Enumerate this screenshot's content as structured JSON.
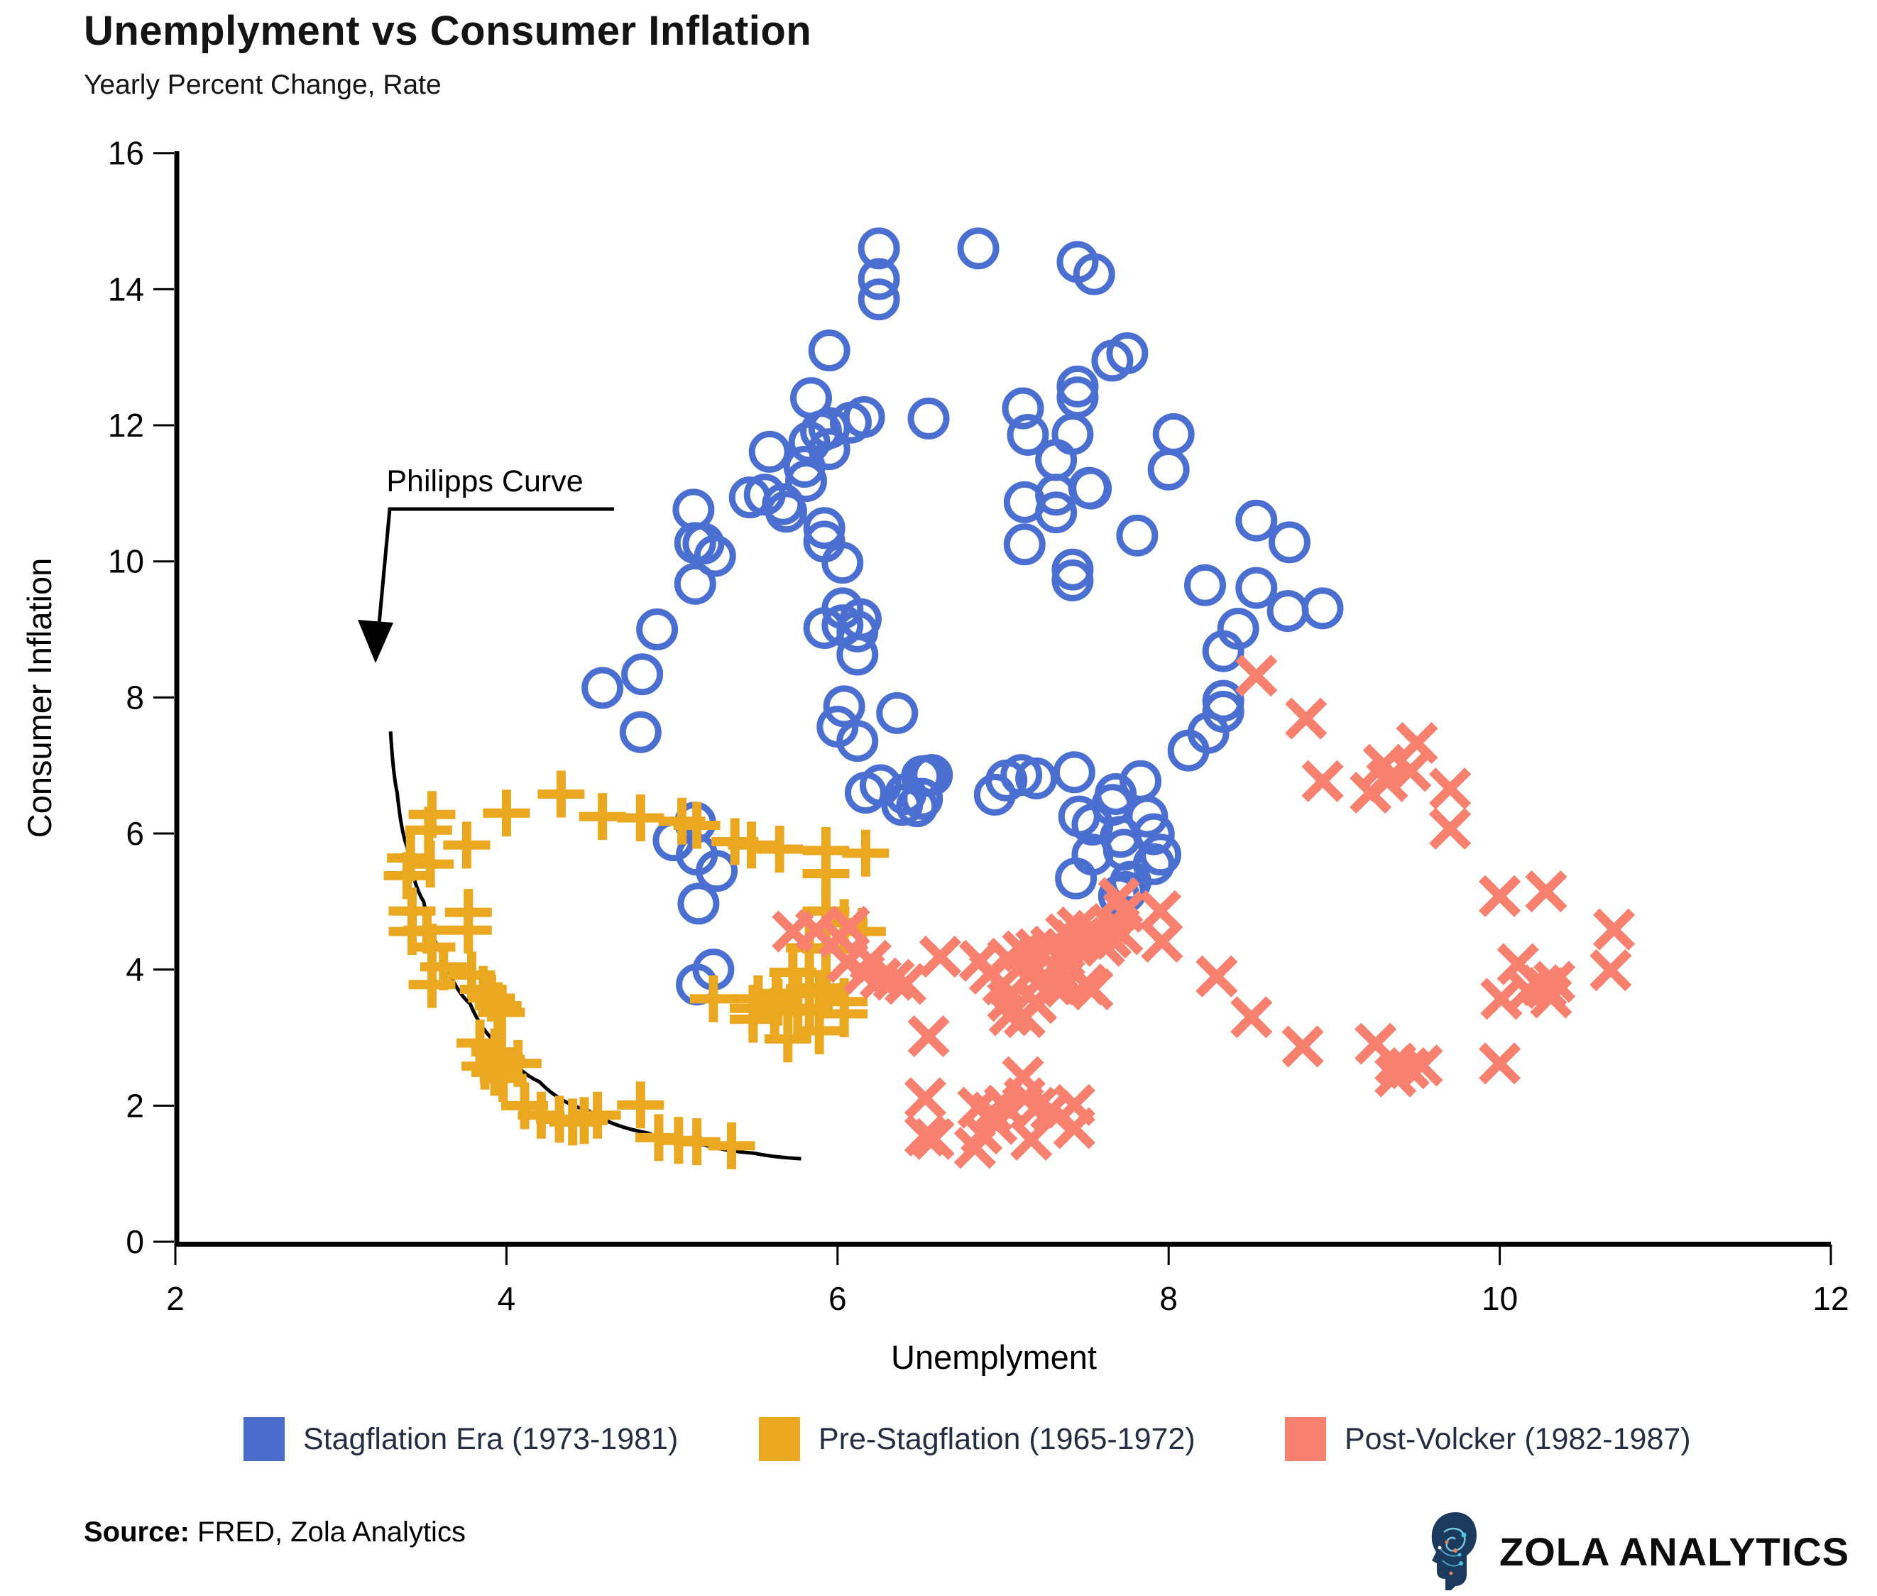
{
  "header": {
    "title": "Unemplyment vs Consumer Inflation",
    "subtitle": "Yearly Percent Change, Rate"
  },
  "axes": {
    "x_label": "Unemplyment",
    "y_label": "Consumer Inflation",
    "x_ticks": [
      2,
      4,
      6,
      8,
      10,
      12
    ],
    "y_ticks": [
      0,
      2,
      4,
      6,
      8,
      10,
      12,
      14,
      16
    ]
  },
  "annotation": {
    "label": "Philipps Curve"
  },
  "legend": [
    {
      "label": "Stagflation Era (1973-1981)",
      "color": "#4a6bc9"
    },
    {
      "label": "Pre-Stagflation (1965-1972)",
      "color": "#e9a820"
    },
    {
      "label": "Post-Volcker (1982-1987)",
      "color": "#f8806e"
    }
  ],
  "footer": {
    "source_label": "Source:",
    "source_text": " FRED, Zola Analytics",
    "brand": "ZOLA ANALYTICS"
  },
  "chart_data": {
    "type": "scatter",
    "title": "Unemplyment vs Consumer Inflation",
    "subtitle": "Yearly Percent Change, Rate",
    "xlabel": "Unemplyment",
    "ylabel": "Consumer Inflation",
    "xlim": [
      2,
      12
    ],
    "ylim": [
      0,
      16
    ],
    "grid": false,
    "legend_position": "bottom",
    "series": [
      {
        "name": "Stagflation Era (1973-1981)",
        "marker": "circle",
        "color": "#4a6fd1",
        "points": [
          [
            6.25,
            14.6
          ],
          [
            6.25,
            14.15
          ],
          [
            6.25,
            13.85
          ],
          [
            6.85,
            14.6
          ],
          [
            7.45,
            14.4
          ],
          [
            7.55,
            14.22
          ],
          [
            7.66,
            12.95
          ],
          [
            7.75,
            13.06
          ],
          [
            5.95,
            13.1
          ],
          [
            5.84,
            12.4
          ],
          [
            5.9,
            11.91
          ],
          [
            5.95,
            11.96
          ],
          [
            5.83,
            11.75
          ],
          [
            5.95,
            11.65
          ],
          [
            6.08,
            12.04
          ],
          [
            6.16,
            12.12
          ],
          [
            6.55,
            12.1
          ],
          [
            7.12,
            12.25
          ],
          [
            7.15,
            11.86
          ],
          [
            7.45,
            12.57
          ],
          [
            7.45,
            12.41
          ],
          [
            7.42,
            11.87
          ],
          [
            7.32,
            11.49
          ],
          [
            7.52,
            11.08
          ],
          [
            8.03,
            11.87
          ],
          [
            8.0,
            11.35
          ],
          [
            5.59,
            11.61
          ],
          [
            5.8,
            11.39
          ],
          [
            5.81,
            11.18
          ],
          [
            5.47,
            10.94
          ],
          [
            5.56,
            10.98
          ],
          [
            5.67,
            10.84
          ],
          [
            5.69,
            10.73
          ],
          [
            5.13,
            10.76
          ],
          [
            5.14,
            10.27
          ],
          [
            5.19,
            10.26
          ],
          [
            5.26,
            10.08
          ],
          [
            5.14,
            9.67
          ],
          [
            5.92,
            10.49
          ],
          [
            5.92,
            10.29
          ],
          [
            6.03,
            9.98
          ],
          [
            4.91,
            9.0
          ],
          [
            4.82,
            8.34
          ],
          [
            4.58,
            8.14
          ],
          [
            4.81,
            7.49
          ],
          [
            6.03,
            9.31
          ],
          [
            5.92,
            9.02
          ],
          [
            6.03,
            9.06
          ],
          [
            6.14,
            9.15
          ],
          [
            6.12,
            8.97
          ],
          [
            6.12,
            8.63
          ],
          [
            6.04,
            7.87
          ],
          [
            6.0,
            7.57
          ],
          [
            6.12,
            7.36
          ],
          [
            6.36,
            7.77
          ],
          [
            6.26,
            6.71
          ],
          [
            6.54,
            6.85
          ],
          [
            6.51,
            6.51
          ],
          [
            6.48,
            6.4
          ],
          [
            6.17,
            6.6
          ],
          [
            6.39,
            6.42
          ],
          [
            6.41,
            6.58
          ],
          [
            6.51,
            6.84
          ],
          [
            6.57,
            6.86
          ],
          [
            6.95,
            6.57
          ],
          [
            7.02,
            6.78
          ],
          [
            7.11,
            6.86
          ],
          [
            7.2,
            6.81
          ],
          [
            7.43,
            6.9
          ],
          [
            7.66,
            6.42
          ],
          [
            7.68,
            6.58
          ],
          [
            7.46,
            6.25
          ],
          [
            7.54,
            6.13
          ],
          [
            7.71,
            5.95
          ],
          [
            7.73,
            5.76
          ],
          [
            7.54,
            5.69
          ],
          [
            7.44,
            5.34
          ],
          [
            7.74,
            5.14
          ],
          [
            7.7,
            5.08
          ],
          [
            7.87,
            6.25
          ],
          [
            7.91,
            5.99
          ],
          [
            7.95,
            5.69
          ],
          [
            7.91,
            5.55
          ],
          [
            7.77,
            5.29
          ],
          [
            7.13,
            10.87
          ],
          [
            7.32,
            10.98
          ],
          [
            7.32,
            10.72
          ],
          [
            7.13,
            10.25
          ],
          [
            7.42,
            9.88
          ],
          [
            7.42,
            9.72
          ],
          [
            7.53,
            11.07
          ],
          [
            7.81,
            10.38
          ],
          [
            8.53,
            10.6
          ],
          [
            8.73,
            10.28
          ],
          [
            8.22,
            9.65
          ],
          [
            8.53,
            9.61
          ],
          [
            8.72,
            9.27
          ],
          [
            8.93,
            9.31
          ],
          [
            8.42,
            9.01
          ],
          [
            8.33,
            8.68
          ],
          [
            8.33,
            7.95
          ],
          [
            8.33,
            7.79
          ],
          [
            8.24,
            7.48
          ],
          [
            8.12,
            7.22
          ],
          [
            7.83,
            6.77
          ],
          [
            5.01,
            5.9
          ],
          [
            5.14,
            6.16
          ],
          [
            5.15,
            5.69
          ],
          [
            5.27,
            5.45
          ],
          [
            5.16,
            4.97
          ],
          [
            5.25,
            4.0
          ],
          [
            5.15,
            3.78
          ]
        ]
      },
      {
        "name": "Pre-Stagflation (1965-1972)",
        "marker": "plus",
        "color": "#e9a820",
        "points": [
          [
            3.55,
            6.28
          ],
          [
            4.0,
            6.3
          ],
          [
            4.33,
            6.58
          ],
          [
            4.58,
            6.25
          ],
          [
            4.81,
            6.23
          ],
          [
            5.06,
            6.18
          ],
          [
            5.15,
            6.12
          ],
          [
            5.38,
            5.88
          ],
          [
            5.48,
            5.83
          ],
          [
            5.65,
            5.77
          ],
          [
            5.93,
            5.75
          ],
          [
            6.17,
            5.71
          ],
          [
            5.93,
            5.41
          ],
          [
            3.53,
            6.05
          ],
          [
            3.42,
            5.64
          ],
          [
            3.4,
            5.38
          ],
          [
            3.54,
            5.55
          ],
          [
            3.76,
            5.83
          ],
          [
            3.43,
            4.86
          ],
          [
            3.52,
            4.58
          ],
          [
            3.43,
            4.56
          ],
          [
            3.55,
            4.33
          ],
          [
            3.77,
            4.84
          ],
          [
            3.77,
            4.58
          ],
          [
            3.62,
            4.04
          ],
          [
            3.55,
            3.78
          ],
          [
            3.79,
            3.92
          ],
          [
            3.86,
            3.71
          ],
          [
            3.91,
            3.58
          ],
          [
            3.95,
            3.47
          ],
          [
            3.97,
            3.37
          ],
          [
            3.84,
            2.92
          ],
          [
            3.93,
            2.79
          ],
          [
            3.97,
            2.68
          ],
          [
            3.87,
            2.58
          ],
          [
            3.93,
            2.49
          ],
          [
            3.98,
            2.4
          ],
          [
            4.07,
            2.62
          ],
          [
            4.11,
            2.0
          ],
          [
            4.21,
            1.86
          ],
          [
            4.32,
            1.8
          ],
          [
            4.4,
            1.76
          ],
          [
            4.47,
            1.78
          ],
          [
            4.55,
            1.86
          ],
          [
            4.81,
            2.01
          ],
          [
            4.92,
            1.53
          ],
          [
            5.04,
            1.49
          ],
          [
            5.15,
            1.47
          ],
          [
            5.36,
            1.41
          ],
          [
            5.93,
            4.86
          ],
          [
            6.04,
            4.69
          ],
          [
            6.15,
            4.56
          ],
          [
            5.83,
            4.32
          ],
          [
            5.93,
            4.3
          ],
          [
            5.73,
            3.96
          ],
          [
            5.63,
            3.65
          ],
          [
            5.76,
            3.65
          ],
          [
            5.89,
            3.65
          ],
          [
            5.83,
            3.72
          ],
          [
            5.93,
            3.73
          ],
          [
            5.25,
            3.57
          ],
          [
            5.49,
            3.43
          ],
          [
            5.62,
            3.39
          ],
          [
            5.76,
            3.39
          ],
          [
            5.49,
            3.27
          ],
          [
            5.52,
            3.57
          ],
          [
            5.64,
            3.52
          ],
          [
            6.04,
            3.53
          ],
          [
            6.04,
            3.35
          ],
          [
            5.83,
            3.43
          ],
          [
            5.89,
            3.1
          ],
          [
            5.7,
            2.98
          ]
        ]
      },
      {
        "name": "Post-Volcker (1982-1987)",
        "marker": "cross",
        "color": "#f8806e",
        "points": [
          [
            8.53,
            8.32
          ],
          [
            8.83,
            7.69
          ],
          [
            8.93,
            6.77
          ],
          [
            9.22,
            6.6
          ],
          [
            9.3,
            7.01
          ],
          [
            9.32,
            6.77
          ],
          [
            9.46,
            6.92
          ],
          [
            9.5,
            7.33
          ],
          [
            9.7,
            6.66
          ],
          [
            9.7,
            6.07
          ],
          [
            10.28,
            5.15
          ],
          [
            10.0,
            5.08
          ],
          [
            10.69,
            4.59
          ],
          [
            10.11,
            4.08
          ],
          [
            10.67,
            3.99
          ],
          [
            10.01,
            3.57
          ],
          [
            10.17,
            3.69
          ],
          [
            10.25,
            3.77
          ],
          [
            10.28,
            3.73
          ],
          [
            10.31,
            3.59
          ],
          [
            10.33,
            3.82
          ],
          [
            10.0,
            2.62
          ],
          [
            9.37,
            2.62
          ],
          [
            9.37,
            2.43
          ],
          [
            9.45,
            2.55
          ],
          [
            9.53,
            2.59
          ],
          [
            9.25,
            2.91
          ],
          [
            8.81,
            2.87
          ],
          [
            8.5,
            3.3
          ],
          [
            8.29,
            3.9
          ],
          [
            7.96,
            4.41
          ],
          [
            7.7,
            5.05
          ],
          [
            7.73,
            4.85
          ],
          [
            7.65,
            4.67
          ],
          [
            7.43,
            4.43
          ],
          [
            7.38,
            4.52
          ],
          [
            7.45,
            4.62
          ],
          [
            7.5,
            4.45
          ],
          [
            7.55,
            4.57
          ],
          [
            7.61,
            4.35
          ],
          [
            7.65,
            4.47
          ],
          [
            7.72,
            4.52
          ],
          [
            7.95,
            4.86
          ],
          [
            7.03,
            4.16
          ],
          [
            7.12,
            4.27
          ],
          [
            7.2,
            4.3
          ],
          [
            7.29,
            4.34
          ],
          [
            7.37,
            4.3
          ],
          [
            7.0,
            3.78
          ],
          [
            7.16,
            3.92
          ],
          [
            7.23,
            3.85
          ],
          [
            7.3,
            3.78
          ],
          [
            7.37,
            3.75
          ],
          [
            7.03,
            3.54
          ],
          [
            7.2,
            3.51
          ],
          [
            7.04,
            3.33
          ],
          [
            7.13,
            3.3
          ],
          [
            7.34,
            3.96
          ],
          [
            7.4,
            4.03
          ],
          [
            7.5,
            3.78
          ],
          [
            7.54,
            3.71
          ],
          [
            6.06,
            4.11
          ],
          [
            6.16,
            3.94
          ],
          [
            6.26,
            3.87
          ],
          [
            6.62,
            4.19
          ],
          [
            6.86,
            4.13
          ],
          [
            6.92,
            3.94
          ],
          [
            5.73,
            4.56
          ],
          [
            5.87,
            4.58
          ],
          [
            6.01,
            4.48
          ],
          [
            6.07,
            4.63
          ],
          [
            6.2,
            4.13
          ],
          [
            6.34,
            3.85
          ],
          [
            6.41,
            3.79
          ],
          [
            6.55,
            3.02
          ],
          [
            6.53,
            2.11
          ],
          [
            6.53,
            1.56
          ],
          [
            6.58,
            1.51
          ],
          [
            6.83,
            1.38
          ],
          [
            6.85,
            1.97
          ],
          [
            6.93,
            1.9
          ],
          [
            7.01,
            2.0
          ],
          [
            7.12,
            2.42
          ],
          [
            7.13,
            2.11
          ],
          [
            7.2,
            1.97
          ],
          [
            6.87,
            1.59
          ],
          [
            6.96,
            1.73
          ],
          [
            7.29,
            1.93
          ],
          [
            7.43,
            2.01
          ],
          [
            7.43,
            1.67
          ],
          [
            7.17,
            1.5
          ]
        ]
      }
    ],
    "phillips_curve": {
      "label": "Philipps Curve",
      "points": [
        [
          3.3,
          7.5
        ],
        [
          3.34,
          6.6
        ],
        [
          3.4,
          5.8
        ],
        [
          3.5,
          5.0
        ],
        [
          3.62,
          4.2
        ],
        [
          3.78,
          3.5
        ],
        [
          3.98,
          2.85
        ],
        [
          4.2,
          2.35
        ],
        [
          4.5,
          1.92
        ],
        [
          4.85,
          1.6
        ],
        [
          5.2,
          1.42
        ],
        [
          5.5,
          1.3
        ],
        [
          5.78,
          1.22
        ]
      ]
    }
  }
}
